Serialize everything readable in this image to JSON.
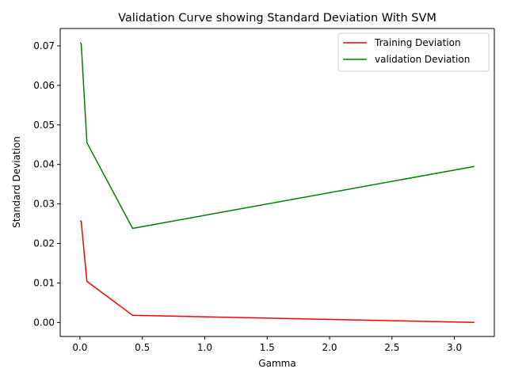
{
  "chart_data": {
    "type": "line",
    "title": "Validation Curve showing Standard Deviation With SVM",
    "xlabel": "Gamma",
    "ylabel": "Standard Deviation",
    "xlim": [
      -0.158,
      3.32
    ],
    "ylim": [
      -0.00354,
      0.0744
    ],
    "xticks": [
      0.0,
      0.5,
      1.0,
      1.5,
      2.0,
      2.5,
      3.0
    ],
    "xtick_labels": [
      "0.0",
      "0.5",
      "1.0",
      "1.5",
      "2.0",
      "2.5",
      "3.0"
    ],
    "yticks": [
      0.0,
      0.01,
      0.02,
      0.03,
      0.04,
      0.05,
      0.06,
      0.07
    ],
    "ytick_labels": [
      "0.00",
      "0.01",
      "0.02",
      "0.03",
      "0.04",
      "0.05",
      "0.06",
      "0.07"
    ],
    "grid": false,
    "legend_position": "top-right",
    "series": [
      {
        "name": "Training Deviation",
        "color": "#ff0000",
        "x": [
          0.001,
          0.00316,
          0.01,
          0.0562,
          0.422,
          3.16
        ],
        "y": [
          0.0257,
          0.0257,
          0.0256,
          0.0104,
          0.0018,
          0.0
        ]
      },
      {
        "name": "validation Deviation",
        "color": "#008000",
        "x": [
          0.001,
          0.00316,
          0.01,
          0.0562,
          0.422,
          3.16
        ],
        "y": [
          0.0708,
          0.0708,
          0.0706,
          0.0455,
          0.0238,
          0.0395
        ]
      }
    ]
  }
}
